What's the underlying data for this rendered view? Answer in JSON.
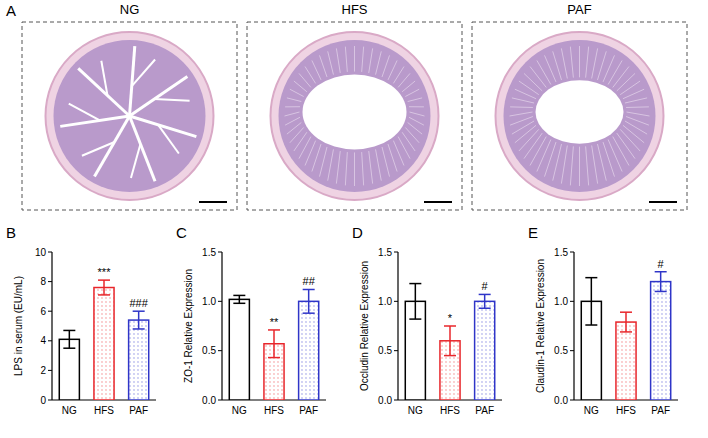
{
  "panel_a": {
    "letter": "A",
    "images": [
      "NG",
      "HFS",
      "PAF"
    ]
  },
  "chart_data": [
    {
      "type": "bar",
      "panel": "B",
      "y_label": "LPS in serum (EU/mL)",
      "categories": [
        "NG",
        "HFS",
        "PAF"
      ],
      "values": [
        4.1,
        7.6,
        5.4
      ],
      "errors": [
        0.6,
        0.5,
        0.6
      ],
      "colors": [
        "#000000",
        "#e8262b",
        "#2f35c8"
      ],
      "ylim": [
        0,
        10
      ],
      "yticks": [
        0,
        2,
        4,
        6,
        8,
        10
      ],
      "annotations": [
        {
          "index": 1,
          "text": "***"
        },
        {
          "index": 2,
          "text": "###"
        }
      ]
    },
    {
      "type": "bar",
      "panel": "C",
      "y_label": "ZO-1 Relative Expression",
      "categories": [
        "NG",
        "HFS",
        "PAF"
      ],
      "values": [
        1.02,
        0.57,
        1.0
      ],
      "errors": [
        0.04,
        0.14,
        0.12
      ],
      "colors": [
        "#000000",
        "#e8262b",
        "#2f35c8"
      ],
      "ylim": [
        0,
        1.5
      ],
      "yticks": [
        {
          "value": 0,
          "label": "0.0"
        },
        {
          "value": 0.5,
          "label": "0.5"
        },
        {
          "value": 1,
          "label": "1.0"
        },
        {
          "value": 1.5,
          "label": "1.5"
        }
      ],
      "annotations": [
        {
          "index": 1,
          "text": "**"
        },
        {
          "index": 2,
          "text": "##"
        }
      ]
    },
    {
      "type": "bar",
      "panel": "D",
      "y_label": "Occludin Relative Expression",
      "categories": [
        "NG",
        "HFS",
        "PAF"
      ],
      "values": [
        1.0,
        0.6,
        1.0
      ],
      "errors": [
        0.18,
        0.15,
        0.07
      ],
      "colors": [
        "#000000",
        "#e8262b",
        "#2f35c8"
      ],
      "ylim": [
        0,
        1.5
      ],
      "yticks": [
        {
          "value": 0,
          "label": "0.0"
        },
        {
          "value": 0.5,
          "label": "0.5"
        },
        {
          "value": 1,
          "label": "1.0"
        },
        {
          "value": 1.5,
          "label": "1.5"
        }
      ],
      "annotations": [
        {
          "index": 1,
          "text": "*"
        },
        {
          "index": 2,
          "text": "#"
        }
      ]
    },
    {
      "type": "bar",
      "panel": "E",
      "y_label": "Claudin-1 Relative Expression",
      "categories": [
        "NG",
        "HFS",
        "PAF"
      ],
      "values": [
        1.0,
        0.79,
        1.2
      ],
      "errors": [
        0.24,
        0.1,
        0.1
      ],
      "colors": [
        "#000000",
        "#e8262b",
        "#2f35c8"
      ],
      "ylim": [
        0,
        1.5
      ],
      "yticks": [
        {
          "value": 0,
          "label": "0.0"
        },
        {
          "value": 0.5,
          "label": "0.5"
        },
        {
          "value": 1,
          "label": "1.0"
        },
        {
          "value": 1.5,
          "label": "1.5"
        }
      ],
      "annotations": [
        {
          "index": 2,
          "text": "#"
        }
      ]
    }
  ]
}
